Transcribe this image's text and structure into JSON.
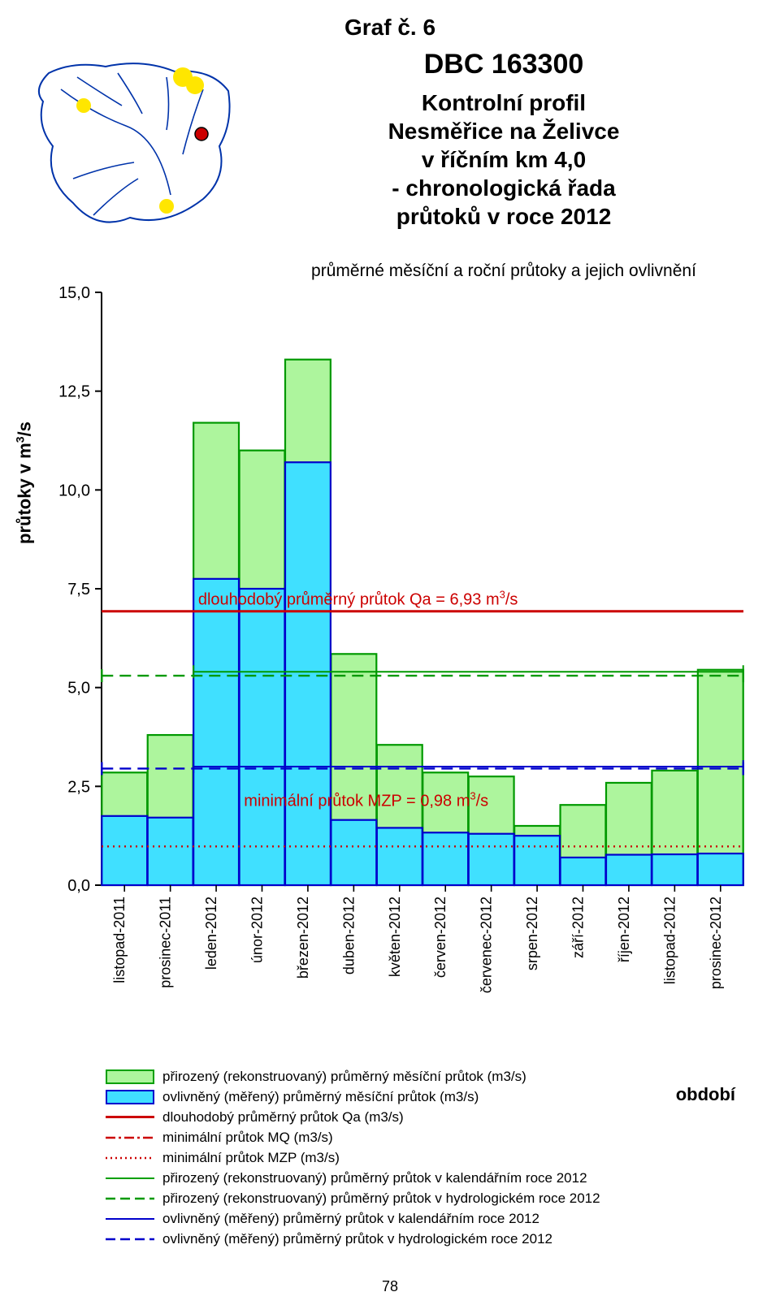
{
  "heading": "Graf č. 6",
  "title_lines": {
    "a": "DBC  163300",
    "b": "Kontrolní profil",
    "c": "Nesměřice na Želivce",
    "d": "v říčním km 4,0",
    "e": "- chronologická řada",
    "f": "průtoků v roce 2012"
  },
  "subtitle": "průměrné měsíční a roční průtoky a jejich ovlivnění",
  "y_axis_label_html": "průtoky v m<sup>3</sup>/s",
  "period_label": "období",
  "page_number": "78",
  "chart": {
    "type": "bar",
    "ylim": [
      0,
      15
    ],
    "ytick_step": 2.5,
    "yticks": [
      "0,0",
      "2,5",
      "5,0",
      "7,5",
      "10,0",
      "12,5",
      "15,0"
    ],
    "grid_color": "#000000",
    "background": "#ffffff",
    "bar_green_fill": "#adf59d",
    "bar_green_stroke": "#009900",
    "bar_blue_fill": "#40e0ff",
    "bar_blue_stroke": "#0000cc",
    "tick_font_size": 18,
    "Qa_color": "#cc0000",
    "Qa_value": 6.93,
    "Qa_label_parts": {
      "a": "dlouhodobý průměrný průtok Qa = 6,93 m",
      "b": "3",
      "c": "/s"
    },
    "MZP_color": "#cc0000",
    "MZP_value": 0.98,
    "MZP_label_parts": {
      "a": "minimální průtok MZP = 0,98 m",
      "b": "3",
      "c": "/s"
    },
    "MQ_color": "#cc0000",
    "green_kal_line": {
      "color": "#009900",
      "y": 5.4,
      "width": 2
    },
    "green_hyd_line": {
      "color": "#009900",
      "y": 5.3,
      "width": 2
    },
    "blue_kal_line": {
      "color": "#0000cc",
      "y": 3.0,
      "width": 2
    },
    "blue_hyd_line": {
      "color": "#0000cc",
      "y": 2.95,
      "width": 2
    },
    "categories": [
      "listopad-2011",
      "prosinec-2011",
      "leden-2012",
      "únor-2012",
      "březen-2012",
      "duben-2012",
      "květen-2012",
      "červen-2012",
      "červenec-2012",
      "srpen-2012",
      "září-2012",
      "říjen-2012",
      "listopad-2012",
      "prosinec-2012"
    ],
    "prirozeny": [
      2.85,
      3.8,
      11.7,
      11.0,
      13.3,
      5.85,
      3.55,
      2.85,
      2.75,
      1.5,
      2.03,
      2.59,
      2.9,
      5.45
    ],
    "ovlivneny": [
      1.75,
      1.71,
      7.75,
      7.5,
      10.7,
      1.65,
      1.45,
      1.33,
      1.3,
      1.25,
      0.7,
      0.77,
      0.78,
      0.8
    ]
  },
  "legend": {
    "prirozeny_mes": "přirozený (rekonstruovaný) průměrný měsíční průtok (m3/s)",
    "ovlivneny_mes": "ovlivněný (měřený) průměrný měsíční průtok (m3/s)",
    "qa": "dlouhodobý průměrný průtok Qa (m3/s)",
    "mq": "minimální průtok MQ (m3/s)",
    "mzp": "minimální průtok MZP (m3/s)",
    "prir_kal": "přirozený (rekonstruovaný) průměrný průtok v kalendářním roce 2012",
    "prir_hyd": "přirozený (rekonstruovaný) průměrný průtok v hydrologickém roce 2012",
    "ovl_kal": "ovlivněný (měřený) průměrný průtok v kalendářním roce 2012",
    "ovl_hyd": "ovlivněný (měřený) průměrný průtok v hydrologickém roce 2012"
  },
  "map": {
    "outline_color": "#0033aa",
    "river_color": "#0033aa",
    "highlight_color": "#ffe600",
    "point_fill": "#cc0000",
    "point_stroke": "#000000"
  }
}
